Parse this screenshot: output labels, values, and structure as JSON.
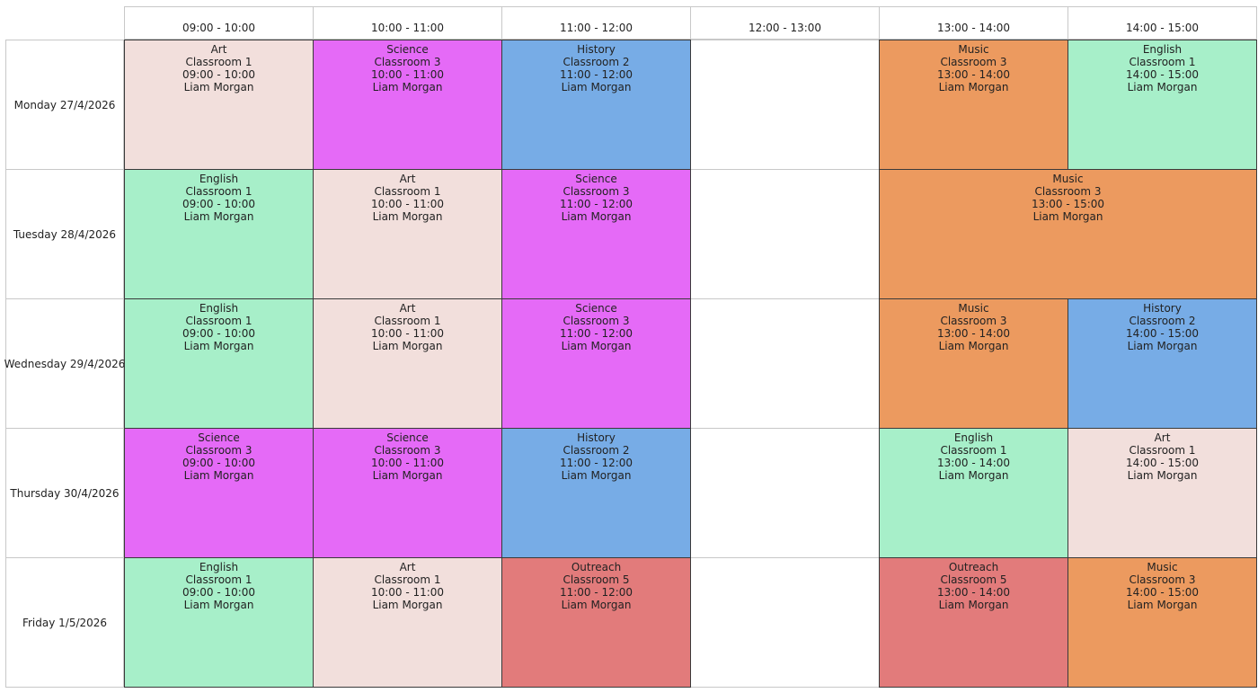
{
  "times": [
    "09:00 - 10:00",
    "10:00 - 11:00",
    "11:00 - 12:00",
    "12:00 - 13:00",
    "13:00 - 14:00",
    "14:00 - 15:00"
  ],
  "days": [
    "Monday 27/4/2026",
    "Tuesday 28/4/2026",
    "Wednesday 29/4/2026",
    "Thursday 30/4/2026",
    "Friday 1/5/2026"
  ],
  "subject_colors": {
    "Art": "#f2dfdc",
    "Science": "#e56af7",
    "History": "#77ace6",
    "Music": "#ec9a5f",
    "English": "#a7efc9",
    "Outreach": "#e27b7b"
  },
  "lessons": [
    {
      "day": 0,
      "start": 0,
      "span": 1,
      "subject": "Art",
      "room": "Classroom 1",
      "time": "09:00 - 10:00",
      "teacher": "Liam Morgan"
    },
    {
      "day": 0,
      "start": 1,
      "span": 1,
      "subject": "Science",
      "room": "Classroom 3",
      "time": "10:00 - 11:00",
      "teacher": "Liam Morgan"
    },
    {
      "day": 0,
      "start": 2,
      "span": 1,
      "subject": "History",
      "room": "Classroom 2",
      "time": "11:00 - 12:00",
      "teacher": "Liam Morgan"
    },
    {
      "day": 0,
      "start": 4,
      "span": 1,
      "subject": "Music",
      "room": "Classroom 3",
      "time": "13:00 - 14:00",
      "teacher": "Liam Morgan"
    },
    {
      "day": 0,
      "start": 5,
      "span": 1,
      "subject": "English",
      "room": "Classroom 1",
      "time": "14:00 - 15:00",
      "teacher": "Liam Morgan"
    },
    {
      "day": 1,
      "start": 0,
      "span": 1,
      "subject": "English",
      "room": "Classroom 1",
      "time": "09:00 - 10:00",
      "teacher": "Liam Morgan"
    },
    {
      "day": 1,
      "start": 1,
      "span": 1,
      "subject": "Art",
      "room": "Classroom 1",
      "time": "10:00 - 11:00",
      "teacher": "Liam Morgan"
    },
    {
      "day": 1,
      "start": 2,
      "span": 1,
      "subject": "Science",
      "room": "Classroom 3",
      "time": "11:00 - 12:00",
      "teacher": "Liam Morgan"
    },
    {
      "day": 1,
      "start": 4,
      "span": 2,
      "subject": "Music",
      "room": "Classroom 3",
      "time": "13:00 - 15:00",
      "teacher": "Liam Morgan"
    },
    {
      "day": 2,
      "start": 0,
      "span": 1,
      "subject": "English",
      "room": "Classroom 1",
      "time": "09:00 - 10:00",
      "teacher": "Liam Morgan"
    },
    {
      "day": 2,
      "start": 1,
      "span": 1,
      "subject": "Art",
      "room": "Classroom 1",
      "time": "10:00 - 11:00",
      "teacher": "Liam Morgan"
    },
    {
      "day": 2,
      "start": 2,
      "span": 1,
      "subject": "Science",
      "room": "Classroom 3",
      "time": "11:00 - 12:00",
      "teacher": "Liam Morgan"
    },
    {
      "day": 2,
      "start": 4,
      "span": 1,
      "subject": "Music",
      "room": "Classroom 3",
      "time": "13:00 - 14:00",
      "teacher": "Liam Morgan"
    },
    {
      "day": 2,
      "start": 5,
      "span": 1,
      "subject": "History",
      "room": "Classroom 2",
      "time": "14:00 - 15:00",
      "teacher": "Liam Morgan"
    },
    {
      "day": 3,
      "start": 0,
      "span": 1,
      "subject": "Science",
      "room": "Classroom 3",
      "time": "09:00 - 10:00",
      "teacher": "Liam Morgan"
    },
    {
      "day": 3,
      "start": 1,
      "span": 1,
      "subject": "Science",
      "room": "Classroom 3",
      "time": "10:00 - 11:00",
      "teacher": "Liam Morgan"
    },
    {
      "day": 3,
      "start": 2,
      "span": 1,
      "subject": "History",
      "room": "Classroom 2",
      "time": "11:00 - 12:00",
      "teacher": "Liam Morgan"
    },
    {
      "day": 3,
      "start": 4,
      "span": 1,
      "subject": "English",
      "room": "Classroom 1",
      "time": "13:00 - 14:00",
      "teacher": "Liam Morgan"
    },
    {
      "day": 3,
      "start": 5,
      "span": 1,
      "subject": "Art",
      "room": "Classroom 1",
      "time": "14:00 - 15:00",
      "teacher": "Liam Morgan"
    },
    {
      "day": 4,
      "start": 0,
      "span": 1,
      "subject": "English",
      "room": "Classroom 1",
      "time": "09:00 - 10:00",
      "teacher": "Liam Morgan"
    },
    {
      "day": 4,
      "start": 1,
      "span": 1,
      "subject": "Art",
      "room": "Classroom 1",
      "time": "10:00 - 11:00",
      "teacher": "Liam Morgan"
    },
    {
      "day": 4,
      "start": 2,
      "span": 1,
      "subject": "Outreach",
      "room": "Classroom 5",
      "time": "11:00 - 12:00",
      "teacher": "Liam Morgan"
    },
    {
      "day": 4,
      "start": 4,
      "span": 1,
      "subject": "Outreach",
      "room": "Classroom 5",
      "time": "13:00 - 14:00",
      "teacher": "Liam Morgan"
    },
    {
      "day": 4,
      "start": 5,
      "span": 1,
      "subject": "Music",
      "room": "Classroom 3",
      "time": "14:00 - 15:00",
      "teacher": "Liam Morgan"
    }
  ]
}
